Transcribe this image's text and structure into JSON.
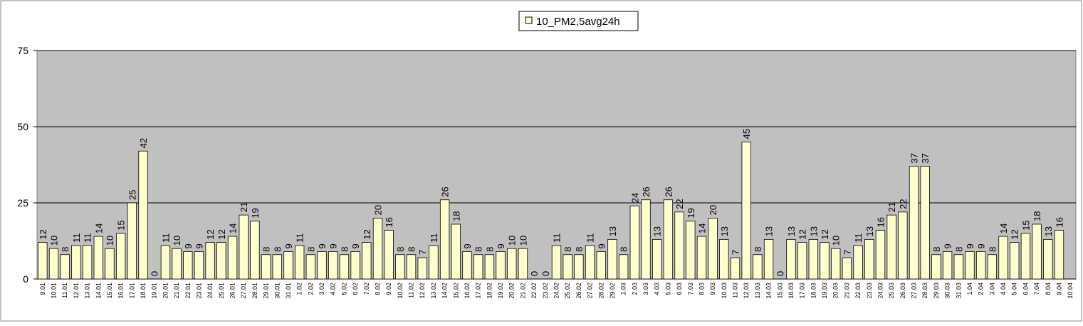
{
  "chart_data": {
    "type": "bar",
    "categories": [
      "9.01",
      "10.01",
      "11.01",
      "12.01",
      "13.01",
      "14.01",
      "15.01",
      "16.01",
      "17.01",
      "18.01",
      "19.01",
      "20.01",
      "21.01",
      "22.01",
      "23.01",
      "24.01",
      "25.01",
      "26.01",
      "27.01",
      "28.01",
      "29.01",
      "30.01",
      "31.01",
      "1.02",
      "2.02",
      "3.02",
      "4.02",
      "5.02",
      "6.02",
      "7.02",
      "8.02",
      "9.02",
      "10.02",
      "11.02",
      "12.02",
      "13.02",
      "14.02",
      "15.02",
      "16.02",
      "17.02",
      "18.02",
      "19.02",
      "20.02",
      "21.02",
      "22.02",
      "23.02",
      "24.02",
      "25.02",
      "26.02",
      "27.02",
      "28.02",
      "29.02",
      "1.03",
      "2.03",
      "3.03",
      "4.03",
      "5.03",
      "6.03",
      "7.03",
      "8.03",
      "9.03",
      "10.03",
      "11.03",
      "12.03",
      "13.03",
      "14.03",
      "15.03",
      "16.03",
      "17.03",
      "18.03",
      "19.03",
      "20.03",
      "21.03",
      "22.03",
      "23.03",
      "24.03",
      "25.03",
      "26.03",
      "27.03",
      "28.03",
      "29.03",
      "30.03",
      "31.03",
      "1.04",
      "2.04",
      "3.04",
      "4.04",
      "5.04",
      "6.04",
      "7.04",
      "8.04",
      "9.04",
      "10.04"
    ],
    "series": [
      {
        "name": "10_PM2,5avg24h",
        "color": "#ffffcc",
        "values": [
          12,
          10,
          8,
          11,
          11,
          14,
          10,
          15,
          25,
          42,
          0,
          11,
          10,
          9,
          9,
          12,
          12,
          14,
          21,
          19,
          8,
          8,
          9,
          11,
          8,
          9,
          9,
          8,
          9,
          12,
          20,
          16,
          8,
          8,
          7,
          11,
          26,
          18,
          9,
          8,
          8,
          9,
          10,
          10,
          0,
          0,
          11,
          8,
          8,
          11,
          9,
          13,
          8,
          24,
          26,
          13,
          26,
          22,
          19,
          14,
          20,
          13,
          7,
          45,
          8,
          13,
          0,
          13,
          12,
          13,
          12,
          10,
          7,
          11,
          13,
          16,
          21,
          22,
          37,
          37,
          8,
          9,
          8,
          9,
          9,
          8,
          14,
          12,
          15,
          18,
          13,
          16,
          null
        ]
      }
    ],
    "ylim": [
      0,
      75
    ],
    "yticks": [
      0,
      25,
      50,
      75
    ],
    "grid": true,
    "plot_background": "#c0c0c0",
    "legend": "top"
  }
}
